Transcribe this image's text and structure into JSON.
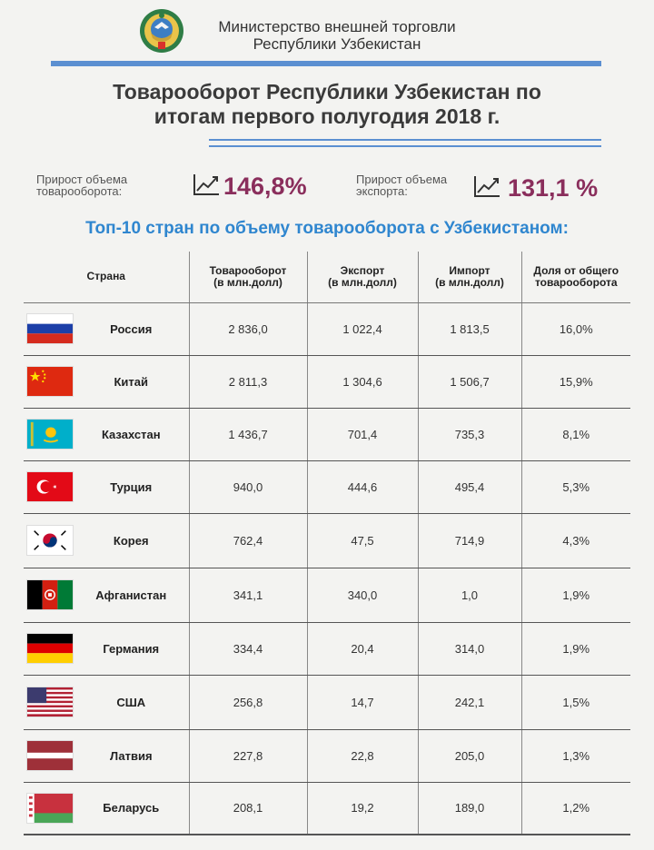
{
  "header": {
    "ministry_line1": "Министерство внешней торговли",
    "ministry_line2": "Республики Узбекистан"
  },
  "title": {
    "line1": "Товарооборот Республики Узбекистан по",
    "line2": "итогам первого полугодия 2018 г."
  },
  "stats": [
    {
      "label_line1": "Прирост объема",
      "label_line2": "товарооборота:",
      "value": "146,8%",
      "icon": "trend-up-icon"
    },
    {
      "label_line1": "Прирост объема",
      "label_line2": "экспорта:",
      "value": "131,1 %",
      "icon": "trend-up-icon"
    }
  ],
  "subtitle": "Топ-10 стран по объему товарооборота с Узбекистаном:",
  "table": {
    "headers": {
      "country": "Страна",
      "turnover": "Товарооборот\n(в млн.долл)",
      "export": "Экспорт\n(в млн.долл)",
      "import": "Импорт\n(в млн.долл)",
      "share": "Доля от общего\nтоварооборота"
    },
    "rows": [
      {
        "country": "Россия",
        "flag": "russia-flag-icon",
        "turnover": "2 836,0",
        "export": "1 022,4",
        "import": "1 813,5",
        "share": "16,0%"
      },
      {
        "country": "Китай",
        "flag": "china-flag-icon",
        "turnover": "2 811,3",
        "export": "1 304,6",
        "import": "1 506,7",
        "share": "15,9%"
      },
      {
        "country": "Казахстан",
        "flag": "kazakhstan-flag-icon",
        "turnover": "1 436,7",
        "export": "701,4",
        "import": "735,3",
        "share": "8,1%"
      },
      {
        "country": "Турция",
        "flag": "turkey-flag-icon",
        "turnover": "940,0",
        "export": "444,6",
        "import": "495,4",
        "share": "5,3%"
      },
      {
        "country": "Корея",
        "flag": "korea-flag-icon",
        "turnover": "762,4",
        "export": "47,5",
        "import": "714,9",
        "share": "4,3%"
      },
      {
        "country": "Афганистан",
        "flag": "afghanistan-flag-icon",
        "turnover": "341,1",
        "export": "340,0",
        "import": "1,0",
        "share": "1,9%"
      },
      {
        "country": "Германия",
        "flag": "germany-flag-icon",
        "turnover": "334,4",
        "export": "20,4",
        "import": "314,0",
        "share": "1,9%"
      },
      {
        "country": "США",
        "flag": "usa-flag-icon",
        "turnover": "256,8",
        "export": "14,7",
        "import": "242,1",
        "share": "1,5%"
      },
      {
        "country": "Латвия",
        "flag": "latvia-flag-icon",
        "turnover": "227,8",
        "export": "22,8",
        "import": "205,0",
        "share": "1,3%"
      },
      {
        "country": "Беларусь",
        "flag": "belarus-flag-icon",
        "turnover": "208,1",
        "export": "19,2",
        "import": "189,0",
        "share": "1,2%"
      }
    ]
  },
  "colors": {
    "accent_blue": "#5b8fd1",
    "subtitle_blue": "#2f86cf",
    "value_purple": "#8a2e5c"
  }
}
